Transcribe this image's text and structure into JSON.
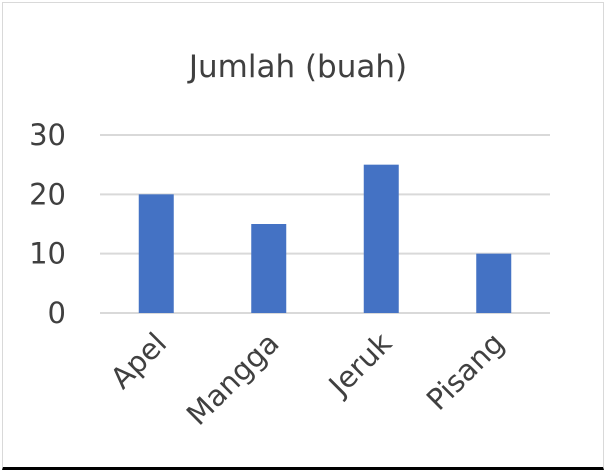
{
  "chart_data": {
    "type": "bar",
    "title": "Jumlah (buah)",
    "categories": [
      "Apel",
      "Mangga",
      "Jeruk",
      "Pisang"
    ],
    "values": [
      20,
      15,
      25,
      10
    ],
    "xlabel": "",
    "ylabel": "",
    "ylim": [
      0,
      30
    ],
    "yticks": [
      "0",
      "10",
      "20",
      "30"
    ],
    "grid": true,
    "legend": "none",
    "bar_color": "#4472C4"
  }
}
